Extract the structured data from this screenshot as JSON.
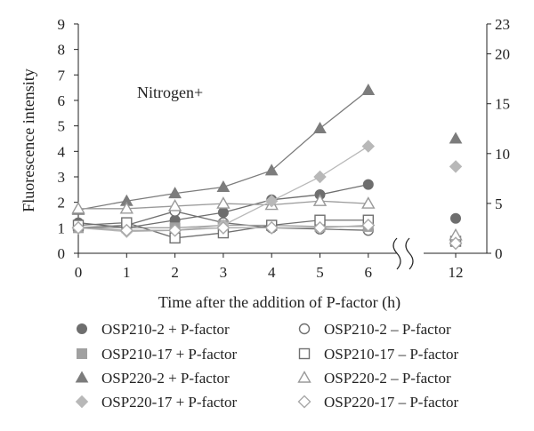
{
  "chart_data": {
    "type": "line",
    "title": "",
    "annotation": "Nitrogen+",
    "xlabel": "Time after the addition of P-factor (h)",
    "ylabel": "Fluorescence intensity",
    "x": [
      0,
      1,
      2,
      3,
      4,
      5,
      6
    ],
    "x_ticks": [
      "0",
      "1",
      "2",
      "3",
      "4",
      "5",
      "6"
    ],
    "x_break_tick": "12",
    "ylim": [
      0,
      9
    ],
    "y_ticks": [
      "0",
      "1",
      "2",
      "3",
      "4",
      "5",
      "6",
      "7",
      "8",
      "9"
    ],
    "y2lim": [
      0,
      23
    ],
    "y2_ticks": [
      "0",
      "5",
      "10",
      "15",
      "20",
      "23"
    ],
    "grid": false,
    "legend_position": "bottom",
    "series": [
      {
        "name": "OSP210-2 + P-factor",
        "marker": "circle",
        "filled": true,
        "color": "#6e6e6e",
        "values": [
          1.2,
          1.0,
          1.3,
          1.6,
          2.1,
          2.3,
          2.7
        ],
        "value_at_12_right_axis": 3.5
      },
      {
        "name": "OSP210-2 – P-factor",
        "marker": "circle",
        "filled": false,
        "color": "#707070",
        "values": [
          1.0,
          1.1,
          1.65,
          1.2,
          1.0,
          0.95,
          0.9
        ],
        "value_at_12_right_axis": 1.1
      },
      {
        "name": "OSP210-17 + P-factor",
        "marker": "square",
        "filled": true,
        "color": "#a0a0a0",
        "values": [
          1.0,
          1.0,
          1.0,
          1.1,
          1.1,
          1.05,
          1.05
        ],
        "value_at_12_right_axis": 1.2
      },
      {
        "name": "OSP210-17 – P-factor",
        "marker": "square",
        "filled": false,
        "color": "#707070",
        "values": [
          1.1,
          1.2,
          0.6,
          0.8,
          1.1,
          1.3,
          1.3
        ],
        "value_at_12_right_axis": 1.2
      },
      {
        "name": "OSP220-2 + P-factor",
        "marker": "triangle",
        "filled": true,
        "color": "#7c7c7c",
        "values": [
          1.7,
          2.05,
          2.35,
          2.6,
          3.25,
          4.9,
          6.4
        ],
        "value_at_12_right_axis": 11.5
      },
      {
        "name": "OSP220-2 – P-factor",
        "marker": "triangle",
        "filled": false,
        "color": "#9a9a9a",
        "values": [
          1.75,
          1.75,
          1.85,
          1.95,
          1.9,
          2.05,
          1.95
        ],
        "value_at_12_right_axis": 1.8
      },
      {
        "name": "OSP220-17 + P-factor",
        "marker": "diamond",
        "filled": true,
        "color": "#b8b8b8",
        "values": [
          1.0,
          0.85,
          0.9,
          1.1,
          2.05,
          3.0,
          4.2
        ],
        "value_at_12_right_axis": 8.7
      },
      {
        "name": "OSP220-17 – P-factor",
        "marker": "diamond",
        "filled": false,
        "color": "#a8a8a8",
        "values": [
          1.0,
          0.9,
          0.9,
          1.0,
          1.0,
          1.0,
          1.1
        ],
        "value_at_12_right_axis": 1.0
      }
    ]
  }
}
